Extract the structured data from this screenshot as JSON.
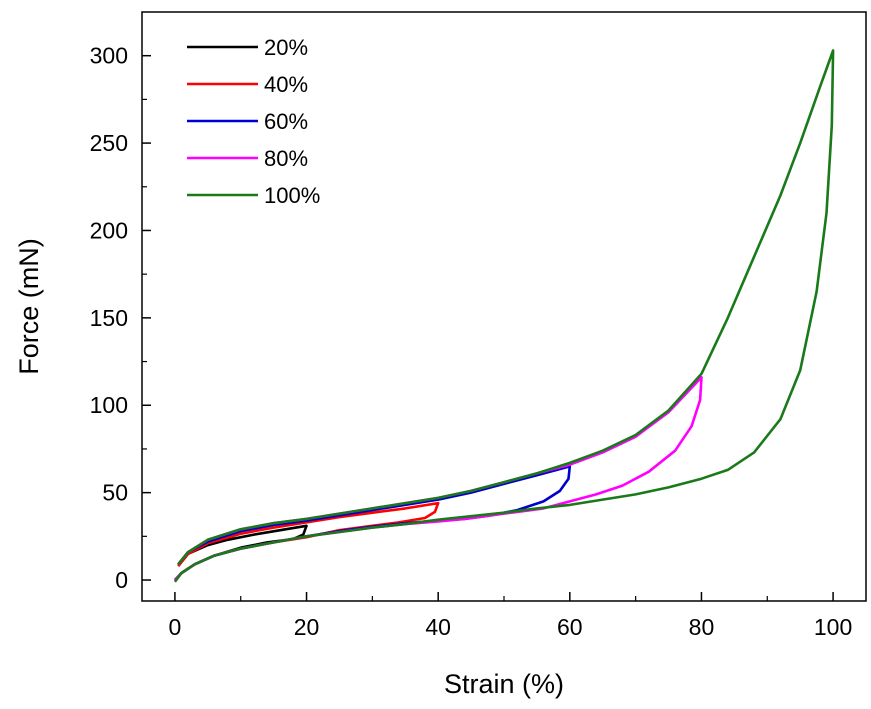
{
  "chart_data": {
    "type": "line",
    "xlabel": "Strain (%)",
    "ylabel": "Force (mN)",
    "xlim": [
      -5,
      105
    ],
    "ylim": [
      -12,
      325
    ],
    "xticks": [
      0,
      20,
      40,
      60,
      80,
      100
    ],
    "yticks": [
      0,
      50,
      100,
      150,
      200,
      250,
      300
    ],
    "grid": false,
    "legend": "top-left",
    "series": [
      {
        "name": "20%",
        "color": "#000000",
        "loading": [
          [
            0.5,
            8
          ],
          [
            2,
            15
          ],
          [
            5,
            20
          ],
          [
            8,
            23
          ],
          [
            12,
            26
          ],
          [
            16,
            28.5
          ],
          [
            20,
            31
          ]
        ],
        "unloading": [
          [
            20,
            31
          ],
          [
            19.5,
            26
          ],
          [
            18,
            23.5
          ],
          [
            14,
            21.5
          ],
          [
            10,
            18.5
          ],
          [
            6,
            14
          ],
          [
            3,
            9
          ],
          [
            1,
            4
          ],
          [
            0,
            0
          ]
        ]
      },
      {
        "name": "40%",
        "color": "#ff0000",
        "loading": [
          [
            0.5,
            8
          ],
          [
            2,
            15
          ],
          [
            5,
            21
          ],
          [
            10,
            26.5
          ],
          [
            15,
            30
          ],
          [
            20,
            33
          ],
          [
            25,
            36
          ],
          [
            30,
            38.5
          ],
          [
            35,
            41
          ],
          [
            40,
            44
          ]
        ],
        "unloading": [
          [
            40,
            44
          ],
          [
            39.5,
            39
          ],
          [
            38,
            35.5
          ],
          [
            34,
            33
          ],
          [
            30,
            31
          ],
          [
            25,
            28.5
          ],
          [
            20,
            24.5
          ],
          [
            15,
            21.5
          ],
          [
            10,
            18
          ],
          [
            6,
            14
          ],
          [
            3,
            9
          ],
          [
            1,
            4
          ],
          [
            0,
            0
          ]
        ]
      },
      {
        "name": "60%",
        "color": "#0000cc",
        "loading": [
          [
            0.5,
            9
          ],
          [
            2,
            16
          ],
          [
            5,
            22
          ],
          [
            10,
            28
          ],
          [
            15,
            31.5
          ],
          [
            20,
            34
          ],
          [
            25,
            37
          ],
          [
            30,
            40
          ],
          [
            35,
            43
          ],
          [
            40,
            46
          ],
          [
            45,
            50
          ],
          [
            50,
            55
          ],
          [
            55,
            60
          ],
          [
            60,
            65
          ]
        ],
        "unloading": [
          [
            60,
            65
          ],
          [
            59.8,
            58
          ],
          [
            58.5,
            51
          ],
          [
            56,
            45
          ],
          [
            52,
            40
          ],
          [
            48,
            37
          ],
          [
            44,
            35
          ],
          [
            40,
            34
          ],
          [
            35,
            32.5
          ],
          [
            30,
            30.5
          ],
          [
            25,
            28
          ],
          [
            20,
            25
          ],
          [
            15,
            21.5
          ],
          [
            10,
            18
          ],
          [
            6,
            14
          ],
          [
            3,
            9
          ],
          [
            1,
            4
          ],
          [
            0,
            0
          ]
        ]
      },
      {
        "name": "80%",
        "color": "#ff00ff",
        "loading": [
          [
            0.5,
            9
          ],
          [
            2,
            16
          ],
          [
            5,
            23
          ],
          [
            10,
            29
          ],
          [
            15,
            32.5
          ],
          [
            20,
            35
          ],
          [
            25,
            38
          ],
          [
            30,
            41
          ],
          [
            35,
            44
          ],
          [
            40,
            47
          ],
          [
            45,
            51
          ],
          [
            50,
            56
          ],
          [
            55,
            61
          ],
          [
            60,
            66
          ],
          [
            65,
            73
          ],
          [
            70,
            82
          ],
          [
            75,
            96
          ],
          [
            80,
            116
          ]
        ],
        "unloading": [
          [
            80,
            116
          ],
          [
            79.8,
            103
          ],
          [
            78.5,
            88
          ],
          [
            76,
            74
          ],
          [
            72,
            62
          ],
          [
            68,
            54
          ],
          [
            64,
            49
          ],
          [
            60,
            45
          ],
          [
            56,
            41
          ],
          [
            52,
            39
          ],
          [
            48,
            37
          ],
          [
            44,
            35
          ],
          [
            40,
            33.5
          ],
          [
            35,
            32
          ],
          [
            30,
            30
          ],
          [
            25,
            27.5
          ],
          [
            20,
            25
          ],
          [
            15,
            21.5
          ],
          [
            10,
            18
          ],
          [
            6,
            14
          ],
          [
            3,
            9
          ],
          [
            1,
            4
          ],
          [
            0,
            0
          ]
        ]
      },
      {
        "name": "100%",
        "color": "#1a7a1a",
        "loading": [
          [
            0.5,
            9
          ],
          [
            2,
            16
          ],
          [
            5,
            23
          ],
          [
            10,
            29
          ],
          [
            15,
            32.5
          ],
          [
            20,
            35
          ],
          [
            25,
            38
          ],
          [
            30,
            41
          ],
          [
            35,
            44
          ],
          [
            40,
            47
          ],
          [
            45,
            51
          ],
          [
            50,
            56
          ],
          [
            55,
            61
          ],
          [
            60,
            67
          ],
          [
            65,
            74
          ],
          [
            70,
            83
          ],
          [
            75,
            97
          ],
          [
            80,
            118
          ],
          [
            84,
            150
          ],
          [
            88,
            185
          ],
          [
            92,
            220
          ],
          [
            95,
            250
          ],
          [
            98,
            282
          ],
          [
            100,
            303
          ]
        ],
        "unloading": [
          [
            100,
            303
          ],
          [
            99.8,
            260
          ],
          [
            99,
            210
          ],
          [
            97.5,
            165
          ],
          [
            95,
            120
          ],
          [
            92,
            92
          ],
          [
            88,
            73
          ],
          [
            84,
            63
          ],
          [
            80,
            58
          ],
          [
            75,
            53
          ],
          [
            70,
            49
          ],
          [
            65,
            46
          ],
          [
            60,
            43
          ],
          [
            55,
            41
          ],
          [
            50,
            38.5
          ],
          [
            45,
            36.5
          ],
          [
            40,
            34.5
          ],
          [
            35,
            32
          ],
          [
            30,
            30
          ],
          [
            25,
            27.5
          ],
          [
            20,
            25
          ],
          [
            15,
            21.5
          ],
          [
            10,
            18
          ],
          [
            6,
            14
          ],
          [
            3,
            9
          ],
          [
            1,
            4
          ],
          [
            0,
            -1
          ]
        ]
      }
    ]
  }
}
